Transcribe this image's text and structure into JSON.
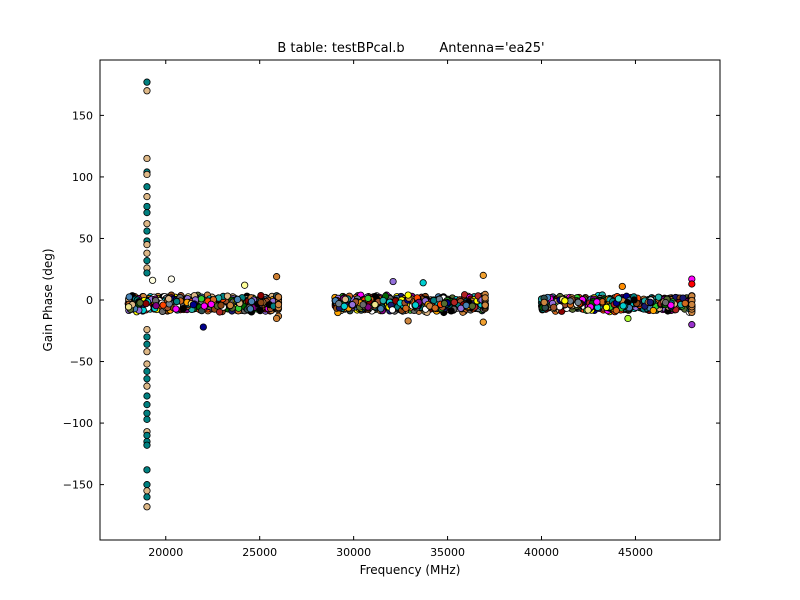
{
  "chart_data": {
    "type": "scatter",
    "title_left": "B table: testBPcal.b",
    "title_right": "Antenna='ea25'",
    "xlabel": "Frequency (MHz)",
    "ylabel": "Gain Phase (deg)",
    "xlim": [
      16500,
      49500
    ],
    "ylim": [
      -195,
      195
    ],
    "xticks": [
      20000,
      25000,
      30000,
      35000,
      40000,
      45000
    ],
    "xtick_labels": [
      "20000",
      "25000",
      "30000",
      "35000",
      "40000",
      "45000"
    ],
    "yticks": [
      150,
      100,
      50,
      0,
      -50,
      -100,
      -150
    ],
    "ytick_labels": [
      "150",
      "100",
      "50",
      "0",
      "−50",
      "−100",
      "−150"
    ],
    "grid": false,
    "legend": "none",
    "bands": [
      {
        "x_start": 18000,
        "x_end": 26000,
        "y_center": -3,
        "y_spread": 8
      },
      {
        "x_start": 29000,
        "x_end": 37000,
        "y_center": -3,
        "y_spread": 8
      },
      {
        "x_start": 40000,
        "x_end": 48000,
        "y_center": -3,
        "y_spread": 8
      }
    ],
    "outlier_column": {
      "x": 19000,
      "points": [
        {
          "y": 177,
          "color": "#008080"
        },
        {
          "y": 170,
          "color": "#deb887"
        },
        {
          "y": 115,
          "color": "#deb887"
        },
        {
          "y": 104,
          "color": "#008080"
        },
        {
          "y": 102,
          "color": "#deb887"
        },
        {
          "y": 92,
          "color": "#008080"
        },
        {
          "y": 84,
          "color": "#deb887"
        },
        {
          "y": 76,
          "color": "#008080"
        },
        {
          "y": 71,
          "color": "#008080"
        },
        {
          "y": 62,
          "color": "#deb887"
        },
        {
          "y": 56,
          "color": "#008080"
        },
        {
          "y": 48,
          "color": "#008080"
        },
        {
          "y": 45,
          "color": "#deb887"
        },
        {
          "y": 38,
          "color": "#deb887"
        },
        {
          "y": 32,
          "color": "#008080"
        },
        {
          "y": 26,
          "color": "#deb887"
        },
        {
          "y": 22,
          "color": "#008080"
        },
        {
          "y": -24,
          "color": "#deb887"
        },
        {
          "y": -30,
          "color": "#008080"
        },
        {
          "y": -36,
          "color": "#008080"
        },
        {
          "y": -42,
          "color": "#deb887"
        },
        {
          "y": -52,
          "color": "#deb887"
        },
        {
          "y": -58,
          "color": "#008080"
        },
        {
          "y": -64,
          "color": "#008080"
        },
        {
          "y": -70,
          "color": "#deb887"
        },
        {
          "y": -78,
          "color": "#008080"
        },
        {
          "y": -85,
          "color": "#008080"
        },
        {
          "y": -92,
          "color": "#008080"
        },
        {
          "y": -97,
          "color": "#008080"
        },
        {
          "y": -107,
          "color": "#deb887"
        },
        {
          "y": -110,
          "color": "#008080"
        },
        {
          "y": -115,
          "color": "#008080"
        },
        {
          "y": -118,
          "color": "#008080"
        },
        {
          "y": -138,
          "color": "#008080"
        },
        {
          "y": -150,
          "color": "#008080"
        },
        {
          "y": -155,
          "color": "#deb887"
        },
        {
          "y": -160,
          "color": "#008080"
        },
        {
          "y": -168,
          "color": "#deb887"
        }
      ]
    },
    "highlight_points": [
      {
        "x": 19300,
        "y": 16,
        "color": "#ffffe0"
      },
      {
        "x": 20300,
        "y": 17,
        "color": "#fffff0"
      },
      {
        "x": 21900,
        "y": 1,
        "color": "#32cd32"
      },
      {
        "x": 22000,
        "y": -22,
        "color": "#00008b"
      },
      {
        "x": 24200,
        "y": 12,
        "color": "#ffff99"
      },
      {
        "x": 25900,
        "y": 19,
        "color": "#cd7f32"
      },
      {
        "x": 25900,
        "y": -15,
        "color": "#cd7f32"
      },
      {
        "x": 32100,
        "y": 15,
        "color": "#9370db"
      },
      {
        "x": 32900,
        "y": 4,
        "color": "#ffff00"
      },
      {
        "x": 32900,
        "y": -17,
        "color": "#cd853f"
      },
      {
        "x": 33700,
        "y": 14,
        "color": "#00ced1"
      },
      {
        "x": 36900,
        "y": 20,
        "color": "#f0a030"
      },
      {
        "x": 36900,
        "y": -18,
        "color": "#f0a030"
      },
      {
        "x": 44100,
        "y": 1,
        "color": "#40e0d0"
      },
      {
        "x": 44300,
        "y": 11,
        "color": "#ff8c00"
      },
      {
        "x": 44600,
        "y": -15,
        "color": "#adff2f"
      },
      {
        "x": 48000,
        "y": 17,
        "color": "#ff00ff"
      },
      {
        "x": 48000,
        "y": 13,
        "color": "#ff0000"
      },
      {
        "x": 48000,
        "y": -20,
        "color": "#9932cc"
      }
    ],
    "colors": [
      "#008080",
      "#deb887",
      "#00008b",
      "#8b0000",
      "#006400",
      "#2f4f4f",
      "#d2691e",
      "#ffa500",
      "#9370db",
      "#ff00ff",
      "#32cd32",
      "#ffff00",
      "#8b4513",
      "#556b2f",
      "#4682b4",
      "#800080",
      "#b22222",
      "#cd853f",
      "#00ced1",
      "#ffffff",
      "#000000",
      "#191970",
      "#a0522d",
      "#20b2aa",
      "#696969",
      "#f0e68c",
      "#708090",
      "#ff4500"
    ]
  }
}
